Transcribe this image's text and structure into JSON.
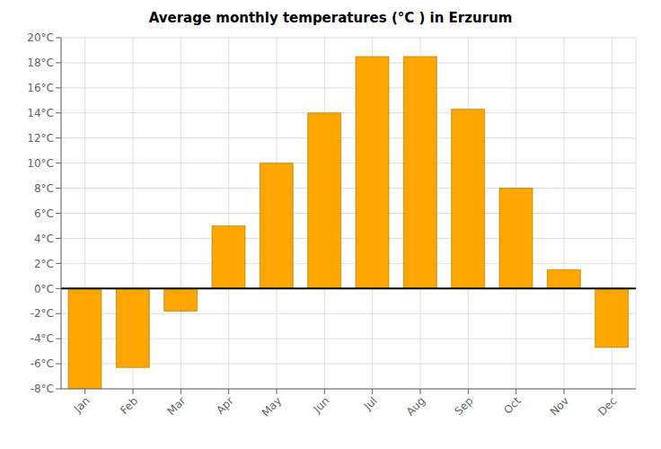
{
  "chart_data": {
    "type": "bar",
    "title": "Average monthly temperatures (°C ) in Erzurum",
    "categories": [
      "Jan",
      "Feb",
      "Mar",
      "Apr",
      "May",
      "Jun",
      "Jul",
      "Aug",
      "Sep",
      "Oct",
      "Nov",
      "Dec"
    ],
    "values": [
      -8,
      -6.3,
      -1.8,
      5,
      10,
      14,
      18.5,
      18.5,
      14.3,
      8,
      1.5,
      -4.7
    ],
    "color": "#FFA500",
    "ylim": [
      -8,
      20
    ],
    "yticks": [
      {
        "value": -8,
        "label": "-8°C"
      },
      {
        "value": -6,
        "label": "-6°C"
      },
      {
        "value": -4,
        "label": "-4°C"
      },
      {
        "value": -2,
        "label": "-2°C"
      },
      {
        "value": 0,
        "label": "0°C"
      },
      {
        "value": 2,
        "label": "2°C"
      },
      {
        "value": 4,
        "label": "4°C"
      },
      {
        "value": 6,
        "label": "6°C"
      },
      {
        "value": 8,
        "label": "8°C"
      },
      {
        "value": 10,
        "label": "10°C"
      },
      {
        "value": 12,
        "label": "12°C"
      },
      {
        "value": 14,
        "label": "14°C"
      },
      {
        "value": 16,
        "label": "16°C"
      },
      {
        "value": 18,
        "label": "18°C"
      },
      {
        "value": 20,
        "label": "20°C"
      }
    ],
    "grid": true
  }
}
